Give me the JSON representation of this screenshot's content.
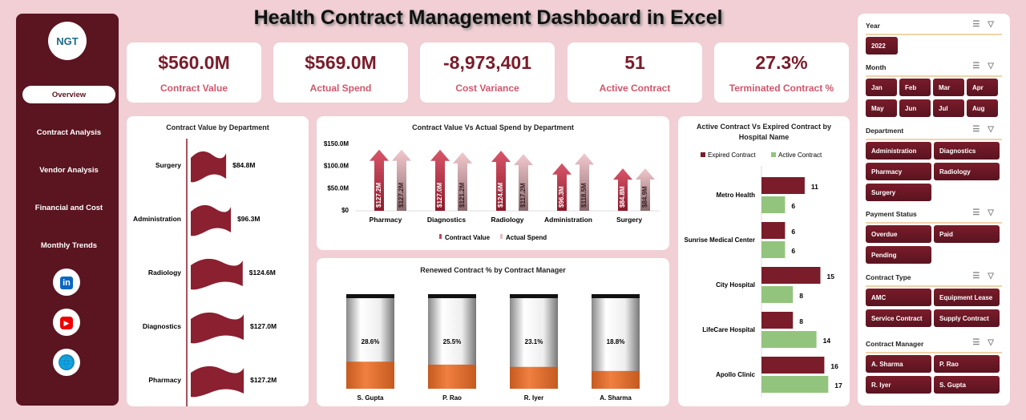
{
  "title": "Health Contract Management  Dashboard in Excel",
  "logo": "NGT",
  "nav": [
    "Overview",
    "Contract Analysis",
    "Vendor Analysis",
    "Financial and Cost",
    "Monthly Trends"
  ],
  "social": [
    "linkedin-icon",
    "youtube-icon",
    "globe-icon"
  ],
  "kpis": [
    {
      "value": "$560.0M",
      "label": "Contract Value"
    },
    {
      "value": "$569.0M",
      "label": "Actual Spend"
    },
    {
      "value": "-8,973,401",
      "label": "Cost Variance"
    },
    {
      "value": "51",
      "label": "Active Contract"
    },
    {
      "value": "27.3%",
      "label": "Terminated Contract %"
    }
  ],
  "colors": {
    "maroon": "#7a1c2a",
    "pink": "#d0576a",
    "light_pink": "#e8b9c0",
    "green": "#93c47d",
    "orange": "#e07030"
  },
  "chart_data": [
    {
      "type": "bar",
      "title": "Contract Value by Department",
      "categories": [
        "Surgery",
        "Administration",
        "Radiology",
        "Diagnostics",
        "Pharmacy"
      ],
      "values": [
        84.8,
        96.3,
        124.6,
        127.0,
        127.2
      ],
      "labels": [
        "$84.8M",
        "$96.3M",
        "$124.6M",
        "$127.0M",
        "$127.2M"
      ]
    },
    {
      "type": "bar",
      "title": "Contract Value Vs Actual Spend by Department",
      "categories": [
        "Pharmacy",
        "Diagnostics",
        "Radiology",
        "Administration",
        "Surgery"
      ],
      "yticks": [
        "$150.0M",
        "$100.0M",
        "$50.0M",
        "$0"
      ],
      "ylim": [
        0,
        150
      ],
      "series": [
        {
          "name": "Contract Value",
          "values": [
            127.2,
            127.0,
            124.6,
            96.3,
            84.8
          ],
          "labels": [
            "$127.2M",
            "$127.0M",
            "$124.6M",
            "$96.3M",
            "$84.8M"
          ]
        },
        {
          "name": "Actual Spend",
          "values": [
            127.2,
            121.2,
            117.2,
            118.5,
            84.9
          ],
          "labels": [
            "$127.2M",
            "$121.2M",
            "$117.2M",
            "$118.5M",
            "$84.9M"
          ]
        }
      ],
      "legend": "bottom"
    },
    {
      "type": "bar",
      "title": "Renewed Contract % by Contract Manager",
      "categories": [
        "S. Gupta",
        "P. Rao",
        "R. Iyer",
        "A. Sharma"
      ],
      "values": [
        28.6,
        25.5,
        23.1,
        18.8
      ],
      "labels": [
        "28.6%",
        "25.5%",
        "23.1%",
        "18.8%"
      ]
    },
    {
      "type": "bar",
      "title": "Active Contract Vs Expired Contract by Hospital Name",
      "categories": [
        "Metro Health",
        "Sunrise Medical Center",
        "City Hospital",
        "LifeCare Hospital",
        "Apollo Clinic"
      ],
      "series": [
        {
          "name": "Expired Contract",
          "values": [
            11,
            6,
            15,
            8,
            16
          ]
        },
        {
          "name": "Active Contract",
          "values": [
            6,
            6,
            8,
            14,
            17
          ]
        }
      ],
      "legend": "top"
    }
  ],
  "slicers": [
    {
      "title": "Year",
      "items": [
        "2022"
      ]
    },
    {
      "title": "Month",
      "items": [
        "Jan",
        "Feb",
        "Mar",
        "Apr",
        "May",
        "Jun",
        "Jul",
        "Aug"
      ]
    },
    {
      "title": "Department",
      "items": [
        "Administration",
        "Diagnostics",
        "Pharmacy",
        "Radiology",
        "Surgery"
      ]
    },
    {
      "title": "Payment Status",
      "items": [
        "Overdue",
        "Paid",
        "Pending"
      ]
    },
    {
      "title": "Contract Type",
      "items": [
        "AMC",
        "Equipment Lease",
        "Service Contract",
        "Supply Contract"
      ]
    },
    {
      "title": "Contract Manager",
      "items": [
        "A. Sharma",
        "P. Rao",
        "R. Iyer",
        "S. Gupta"
      ]
    }
  ]
}
